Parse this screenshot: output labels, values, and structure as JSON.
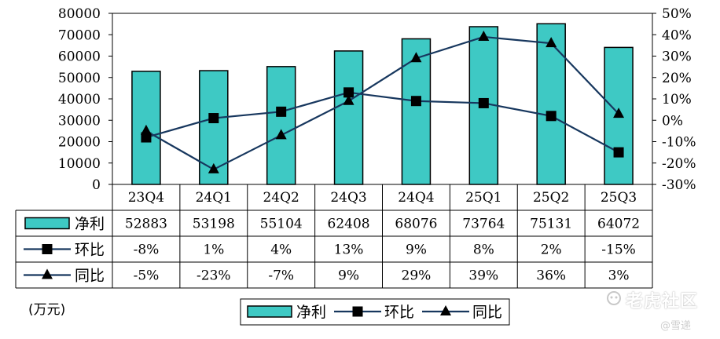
{
  "chart_data": {
    "type": "bar+line",
    "categories": [
      "23Q4",
      "24Q1",
      "24Q2",
      "24Q3",
      "24Q4",
      "25Q1",
      "25Q2",
      "25Q3"
    ],
    "series": [
      {
        "name": "净利",
        "type": "bar",
        "axis": "left",
        "values": [
          52883,
          53198,
          55104,
          62408,
          68076,
          73764,
          75131,
          64072
        ],
        "labels": [
          "52883",
          "53198",
          "55104",
          "62408",
          "68076",
          "73764",
          "75131",
          "64072"
        ]
      },
      {
        "name": "环比",
        "type": "line",
        "axis": "right",
        "marker": "square",
        "values": [
          -8,
          1,
          4,
          13,
          9,
          8,
          2,
          -15
        ],
        "labels": [
          "-8%",
          "1%",
          "4%",
          "13%",
          "9%",
          "8%",
          "2%",
          "-15%"
        ]
      },
      {
        "name": "同比",
        "type": "line",
        "axis": "right",
        "marker": "triangle",
        "values": [
          -5,
          -23,
          -7,
          9,
          29,
          39,
          36,
          3
        ],
        "labels": [
          "-5%",
          "-23%",
          "-7%",
          "9%",
          "29%",
          "39%",
          "36%",
          "3%"
        ]
      }
    ],
    "left_axis": {
      "ylim": [
        0,
        80000
      ],
      "ticks": [
        "80000",
        "70000",
        "60000",
        "50000",
        "40000",
        "30000",
        "20000",
        "10000",
        "0"
      ]
    },
    "right_axis": {
      "ylim": [
        -30,
        50
      ],
      "ticks": [
        "50%",
        "40%",
        "30%",
        "20%",
        "10%",
        "0%",
        "-10%",
        "-20%",
        "-30%"
      ]
    },
    "unit_label": "(万元)",
    "legend_position": "bottom",
    "grid": false,
    "data_table": true,
    "colors": {
      "bar": "#3ec9c4",
      "line": "#17375e",
      "marker": "#000000"
    }
  },
  "watermark": {
    "site": "老虎社区",
    "author": "@雪递"
  }
}
